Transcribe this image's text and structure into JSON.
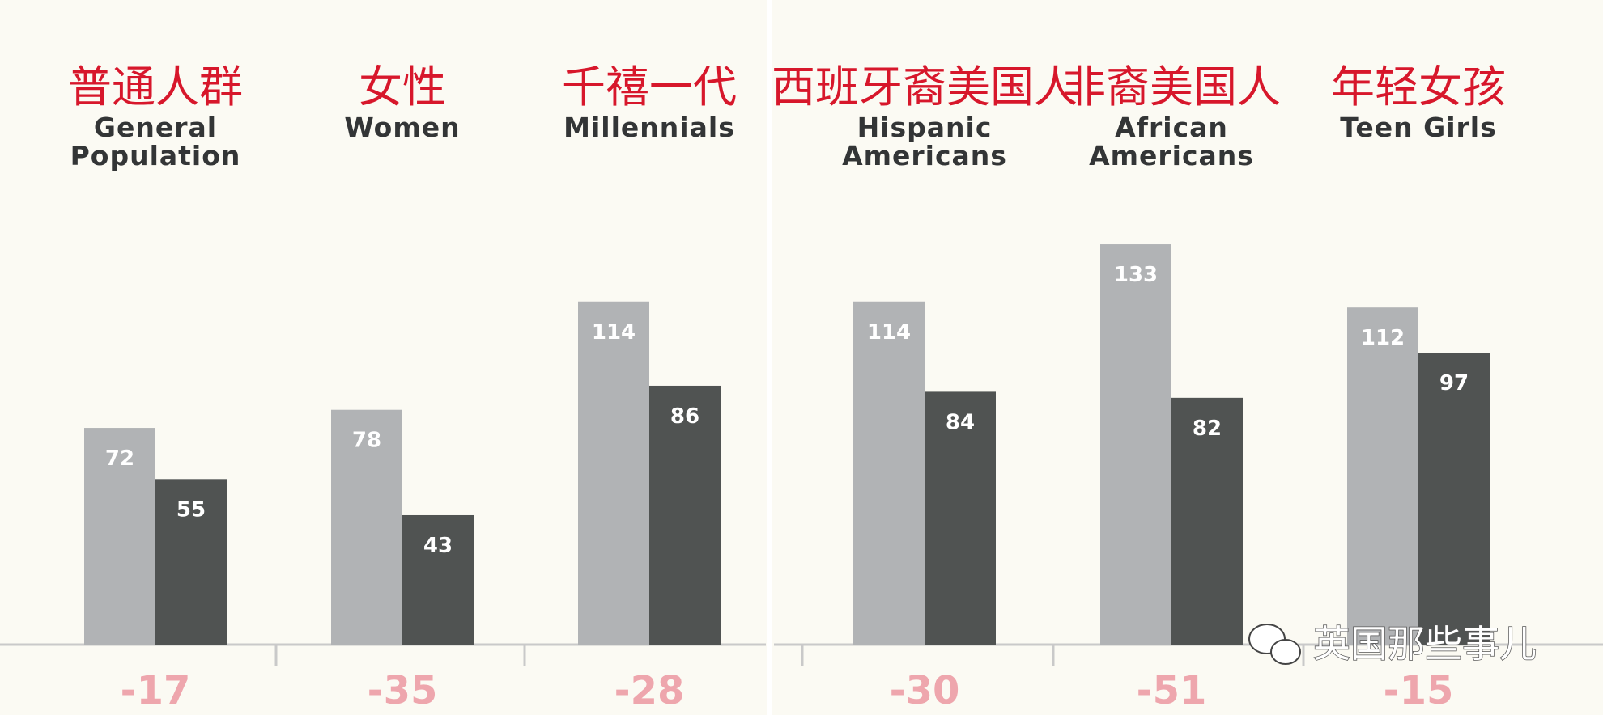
{
  "chart_data": [
    {
      "type": "bar",
      "categories": [
        "General Population",
        "Women",
        "Millennials"
      ],
      "categories_zh": [
        "普通人群",
        "女性",
        "千禧一代"
      ],
      "series": [
        {
          "color": "#b1b3b5",
          "values": [
            72,
            78,
            114
          ]
        },
        {
          "color": "#505352",
          "values": [
            55,
            43,
            86
          ]
        }
      ],
      "differences": [
        -17,
        -35,
        -28
      ],
      "ylim": [
        0,
        140
      ]
    },
    {
      "type": "bar",
      "categories": [
        "Hispanic Americans",
        "African Americans",
        "Teen Girls"
      ],
      "categories_zh": [
        "西班牙裔美国人",
        "非裔美国人",
        "年轻女孩"
      ],
      "series": [
        {
          "color": "#b1b3b5",
          "values": [
            114,
            133,
            112
          ]
        },
        {
          "color": "#505352",
          "values": [
            84,
            82,
            97
          ]
        }
      ],
      "differences": [
        -30,
        -51,
        -15
      ],
      "ylim": [
        0,
        140
      ]
    }
  ],
  "watermark": "英国那些事儿"
}
